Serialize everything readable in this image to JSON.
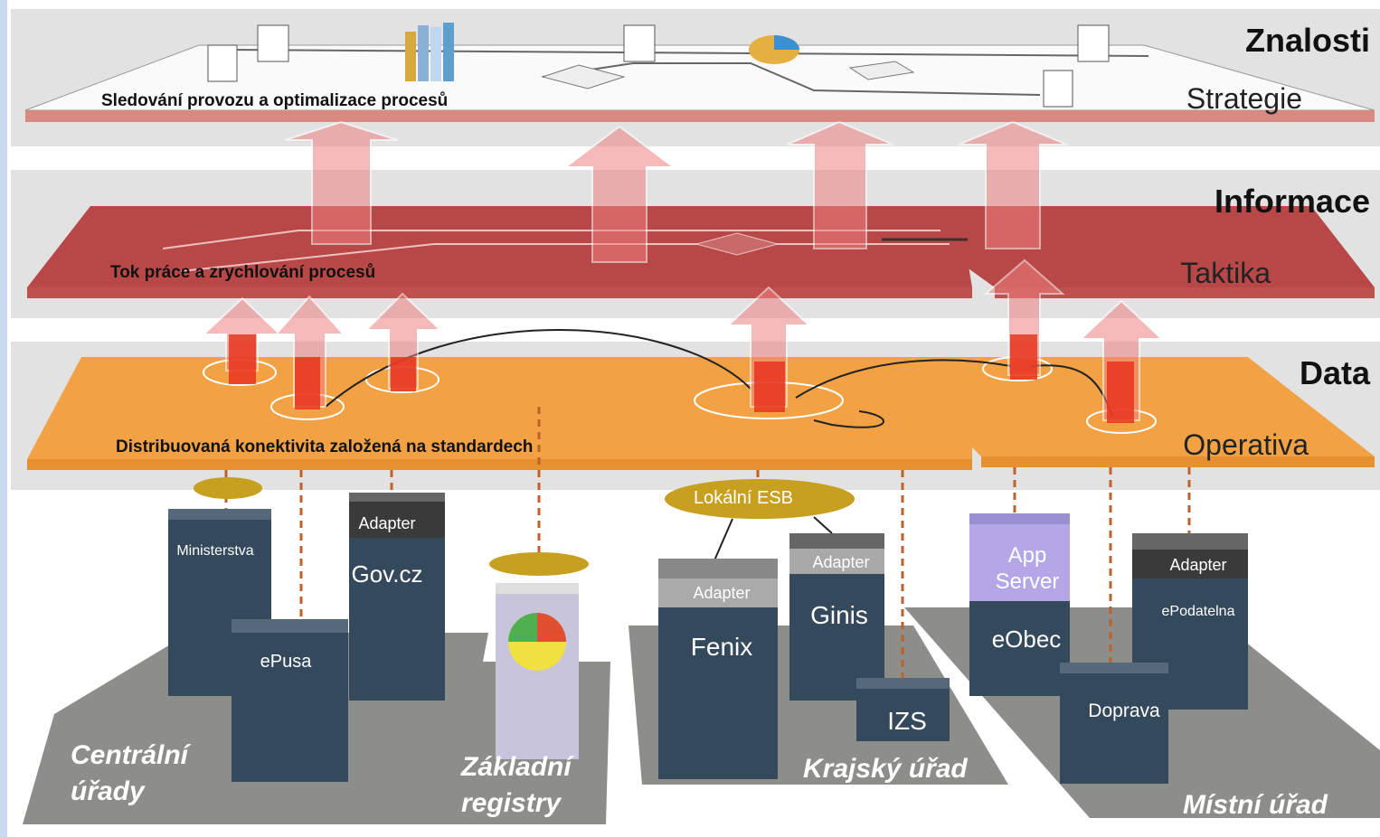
{
  "layers": [
    {
      "title": "Znalosti",
      "subtitle": "Strategie",
      "caption": "Sledování provozu a optimalizace procesů"
    },
    {
      "title": "Informace",
      "subtitle": "Taktika",
      "caption": "Tok práce a zrychlování  procesů"
    },
    {
      "title": "Data",
      "subtitle": "Operativa",
      "caption": "Distribuovaná  konektivita  založená  na standardech"
    }
  ],
  "esb": "Lokální  ESB",
  "systems": [
    {
      "label": "Ministerstva"
    },
    {
      "adapter": "Adapter",
      "label": "Gov.cz"
    },
    {
      "label": "ePusa"
    },
    {
      "adapter": "Adapter",
      "label": "Fenix"
    },
    {
      "adapter": "Adapter",
      "label": "Ginis"
    },
    {
      "label": "IZS"
    },
    {
      "server": [
        "App",
        "Server"
      ],
      "label": "eObec"
    },
    {
      "adapter": "Adapter",
      "label": "ePodatelna"
    },
    {
      "label": "Doprava"
    }
  ],
  "zones": [
    {
      "lines": [
        "Centrální",
        "úřady"
      ]
    },
    {
      "lines": [
        "Základní",
        "registry"
      ]
    },
    {
      "lines": [
        "Krajský úřad"
      ]
    },
    {
      "lines": [
        "Místní úřad"
      ]
    }
  ]
}
